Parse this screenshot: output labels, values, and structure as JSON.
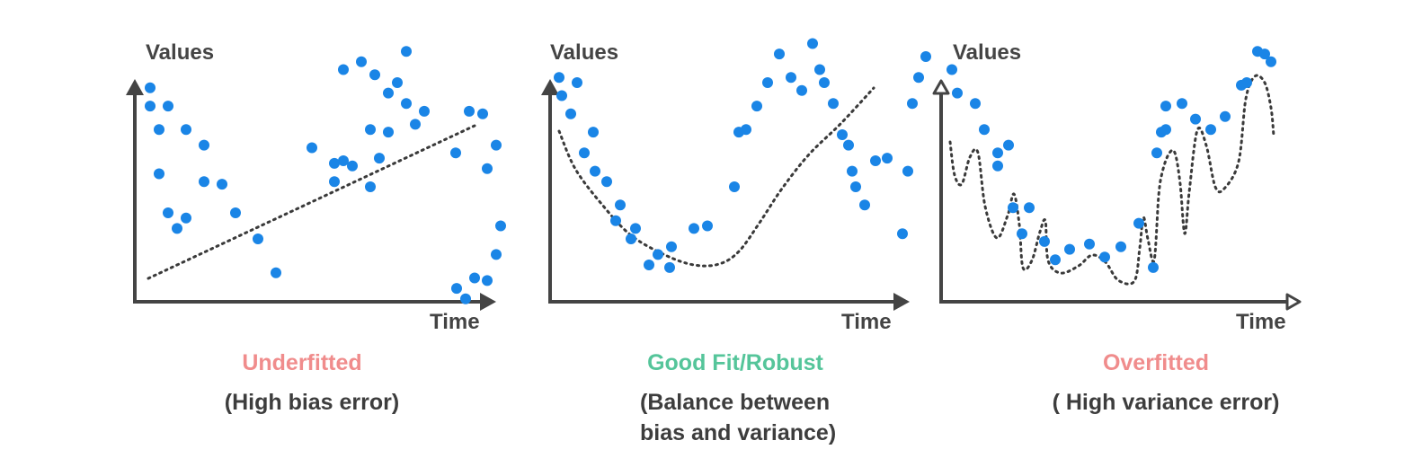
{
  "colors": {
    "axis": "#444444",
    "point": "#1a85e6",
    "curve": "#3a3a3a",
    "underfit": "#f08c8c",
    "goodfit": "#55c59a",
    "overfit": "#f08c8c",
    "text": "#3d3d3d"
  },
  "chart_data": [
    {
      "type": "scatter",
      "xlabel": "Time",
      "ylabel": "Values",
      "title": "Underfitted",
      "subtitle": [
        "(High bias error)"
      ],
      "fit": "linear",
      "points": [
        [
          17,
          78
        ],
        [
          17,
          71
        ],
        [
          37,
          71
        ],
        [
          27,
          62
        ],
        [
          57,
          62
        ],
        [
          77,
          56
        ],
        [
          197,
          55
        ],
        [
          27,
          45
        ],
        [
          77,
          42
        ],
        [
          97,
          41
        ],
        [
          37,
          30
        ],
        [
          47,
          24
        ],
        [
          57,
          28
        ],
        [
          112,
          30
        ],
        [
          137,
          20
        ],
        [
          157,
          7
        ],
        [
          232,
          85
        ],
        [
          252,
          88
        ],
        [
          267,
          83
        ],
        [
          282,
          76
        ],
        [
          292,
          80
        ],
        [
          302,
          92
        ],
        [
          282,
          61
        ],
        [
          262,
          62
        ],
        [
          222,
          49
        ],
        [
          242,
          48
        ],
        [
          312,
          64
        ],
        [
          222,
          42
        ],
        [
          232,
          50
        ],
        [
          262,
          40
        ],
        [
          272,
          51
        ],
        [
          302,
          72
        ],
        [
          322,
          69
        ],
        [
          357,
          53
        ],
        [
          372,
          69
        ],
        [
          392,
          47
        ],
        [
          387,
          68
        ],
        [
          402,
          56
        ],
        [
          407,
          25
        ],
        [
          402,
          14
        ],
        [
          392,
          4
        ],
        [
          368,
          -3
        ],
        [
          358,
          1
        ],
        [
          378,
          5
        ]
      ]
    },
    {
      "type": "scatter",
      "xlabel": "Time",
      "ylabel": "Values",
      "title": "Good Fit/Robust",
      "subtitle": [
        "(Balance between",
        "bias and variance)"
      ],
      "fit": "curve",
      "points": [
        [
          10,
          82
        ],
        [
          13,
          75
        ],
        [
          23,
          68
        ],
        [
          30,
          80
        ],
        [
          38,
          53
        ],
        [
          48,
          61
        ],
        [
          50,
          46
        ],
        [
          63,
          42
        ],
        [
          73,
          27
        ],
        [
          78,
          33
        ],
        [
          90,
          20
        ],
        [
          95,
          24
        ],
        [
          110,
          10
        ],
        [
          120,
          14
        ],
        [
          133,
          9
        ],
        [
          135,
          17
        ],
        [
          160,
          24
        ],
        [
          175,
          25
        ],
        [
          205,
          40
        ],
        [
          210,
          61
        ],
        [
          218,
          62
        ],
        [
          230,
          71
        ],
        [
          242,
          80
        ],
        [
          255,
          91
        ],
        [
          268,
          82
        ],
        [
          280,
          77
        ],
        [
          292,
          95
        ],
        [
          300,
          85
        ],
        [
          305,
          80
        ],
        [
          315,
          72
        ],
        [
          325,
          60
        ],
        [
          332,
          56
        ],
        [
          336,
          46
        ],
        [
          340,
          40
        ],
        [
          350,
          33
        ],
        [
          362,
          50
        ],
        [
          375,
          51
        ],
        [
          392,
          22
        ],
        [
          398,
          46
        ],
        [
          403,
          72
        ],
        [
          410,
          82
        ],
        [
          418,
          90
        ]
      ]
    },
    {
      "type": "scatter",
      "xlabel": "Time",
      "ylabel": "Values",
      "title": "Overfitted",
      "subtitle": [
        "( High variance error)"
      ],
      "fit": "overfit",
      "points": [
        [
          12,
          85
        ],
        [
          18,
          76
        ],
        [
          38,
          72
        ],
        [
          48,
          62
        ],
        [
          63,
          53
        ],
        [
          63,
          48
        ],
        [
          75,
          56
        ],
        [
          80,
          32
        ],
        [
          90,
          22
        ],
        [
          98,
          32
        ],
        [
          115,
          19
        ],
        [
          127,
          12
        ],
        [
          143,
          16
        ],
        [
          165,
          18
        ],
        [
          182,
          13
        ],
        [
          200,
          17
        ],
        [
          220,
          26
        ],
        [
          236,
          9
        ],
        [
          240,
          53
        ],
        [
          245,
          61
        ],
        [
          250,
          62
        ],
        [
          250,
          71
        ],
        [
          268,
          72
        ],
        [
          283,
          66
        ],
        [
          300,
          62
        ],
        [
          316,
          67
        ],
        [
          334,
          79
        ],
        [
          340,
          80
        ],
        [
          352,
          92
        ],
        [
          360,
          91
        ],
        [
          367,
          88
        ]
      ]
    }
  ]
}
